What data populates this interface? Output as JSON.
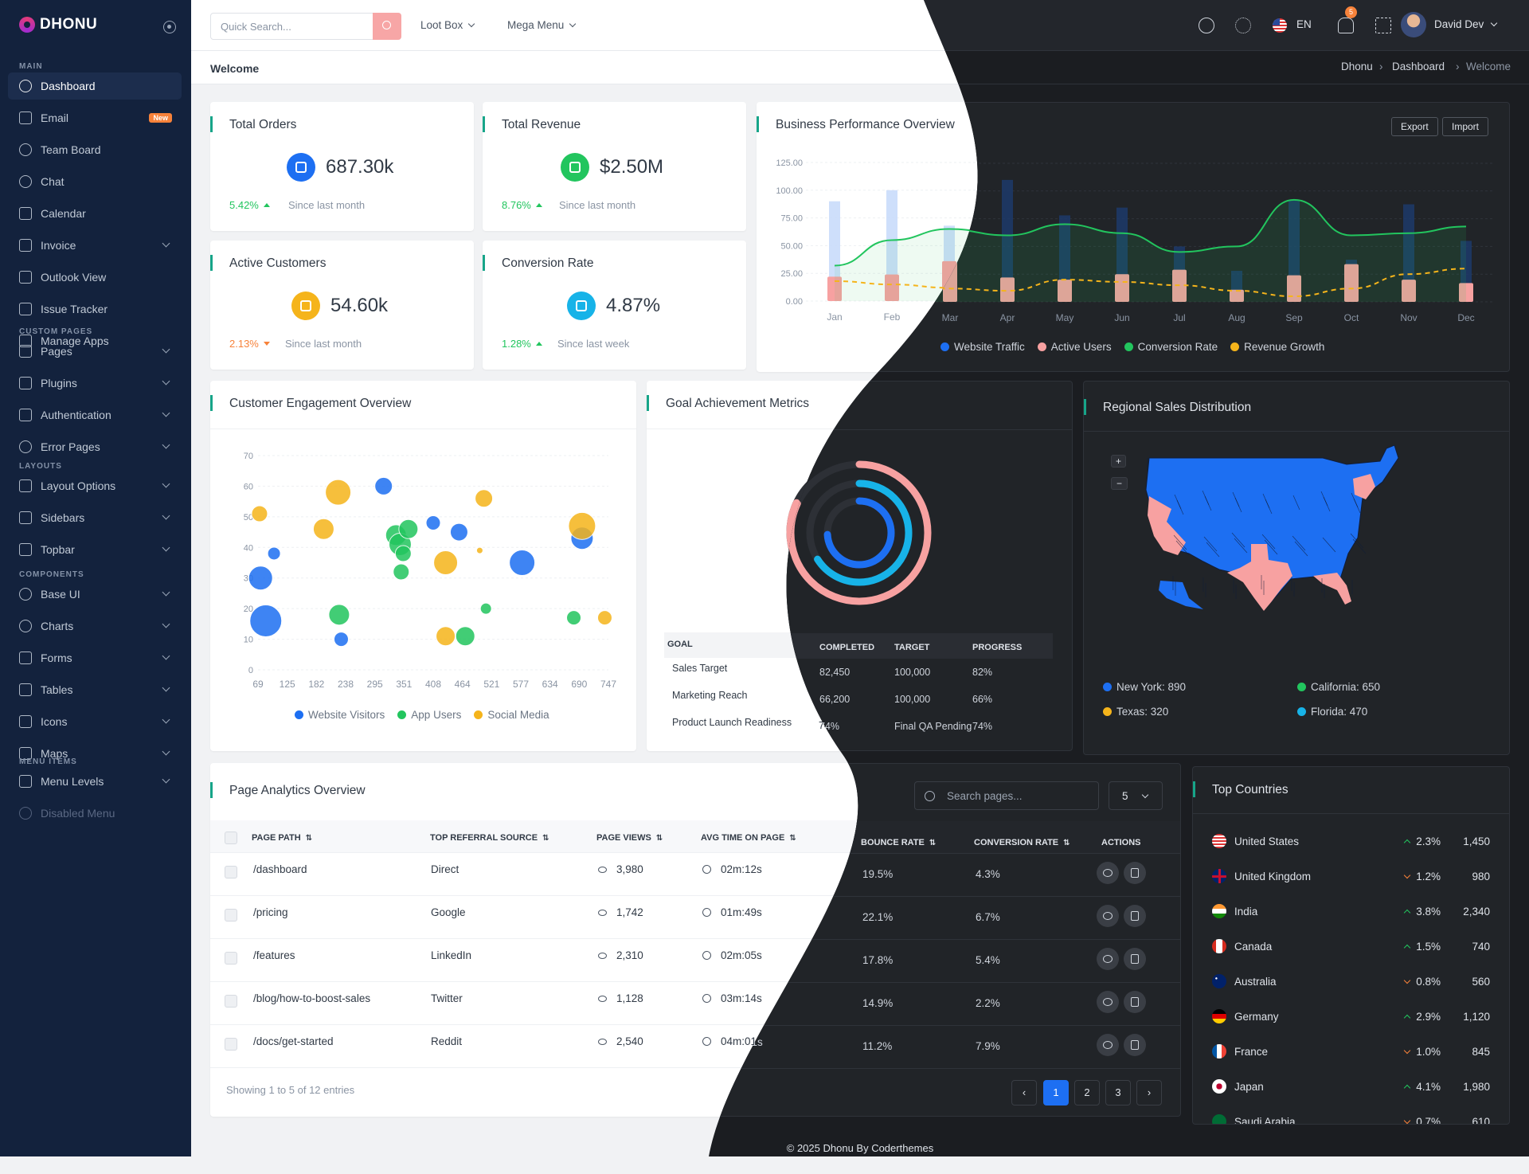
{
  "brand": "DHONU",
  "sidebar": {
    "sections": [
      {
        "title": "MAIN",
        "items": [
          {
            "label": "Dashboard",
            "icon": "dashboard-icon",
            "active": true
          },
          {
            "label": "Email",
            "icon": "mail-icon",
            "badge": "New"
          },
          {
            "label": "Team Board",
            "icon": "team-icon"
          },
          {
            "label": "Chat",
            "icon": "chat-icon"
          },
          {
            "label": "Calendar",
            "icon": "calendar-icon"
          },
          {
            "label": "Invoice",
            "icon": "invoice-icon",
            "chevron": true
          },
          {
            "label": "Outlook View",
            "icon": "outlook-icon"
          },
          {
            "label": "Issue Tracker",
            "icon": "bug-icon"
          },
          {
            "label": "Manage Apps",
            "icon": "apps-icon"
          }
        ]
      },
      {
        "title": "CUSTOM PAGES",
        "items": [
          {
            "label": "Pages",
            "icon": "pages-icon",
            "chevron": true
          },
          {
            "label": "Plugins",
            "icon": "plugins-icon",
            "chevron": true
          },
          {
            "label": "Authentication",
            "icon": "shield-icon",
            "chevron": true
          },
          {
            "label": "Error Pages",
            "icon": "alert-icon",
            "chevron": true
          }
        ]
      },
      {
        "title": "LAYOUTS",
        "items": [
          {
            "label": "Layout Options",
            "icon": "layout-icon",
            "chevron": true
          },
          {
            "label": "Sidebars",
            "icon": "sidebar-icon",
            "chevron": true
          },
          {
            "label": "Topbar",
            "icon": "topbar-icon",
            "chevron": true
          }
        ]
      },
      {
        "title": "COMPONENTS",
        "items": [
          {
            "label": "Base UI",
            "icon": "baseui-icon",
            "chevron": true
          },
          {
            "label": "Charts",
            "icon": "chart-icon",
            "chevron": true
          },
          {
            "label": "Forms",
            "icon": "form-icon",
            "chevron": true
          },
          {
            "label": "Tables",
            "icon": "table-icon",
            "chevron": true
          },
          {
            "label": "Icons",
            "icon": "icons-icon",
            "chevron": true
          },
          {
            "label": "Maps",
            "icon": "map-icon",
            "chevron": true
          }
        ]
      },
      {
        "title": "MENU ITEMS",
        "items": [
          {
            "label": "Menu Levels",
            "icon": "levels-icon",
            "chevron": true
          },
          {
            "label": "Disabled Menu",
            "icon": "disabled-icon",
            "disabled": true
          }
        ]
      }
    ]
  },
  "topbar": {
    "search_placeholder": "Quick Search...",
    "menu1": "Loot Box",
    "menu2": "Mega Menu",
    "lang": "EN",
    "notifications": "5",
    "user": "David Dev"
  },
  "page": {
    "title": "Welcome",
    "breadcrumb": [
      "Dhonu",
      "Dashboard",
      "Welcome"
    ]
  },
  "stats": [
    {
      "title": "Total Orders",
      "value": "687.30k",
      "trend": "5.42%",
      "dir": "up",
      "since": "Since last month",
      "color": "#1d6ff2"
    },
    {
      "title": "Total Revenue",
      "value": "$2.50M",
      "trend": "8.76%",
      "dir": "up",
      "since": "Since last month",
      "color": "#22c55e"
    },
    {
      "title": "Active Customers",
      "value": "54.60k",
      "trend": "2.13%",
      "dir": "down",
      "since": "Since last month",
      "color": "#f5b41b"
    },
    {
      "title": "Conversion Rate",
      "value": "4.87%",
      "trend": "1.28%",
      "dir": "up",
      "since": "Since last week",
      "color": "#17b3e8"
    }
  ],
  "business": {
    "title": "Business Performance Overview",
    "export": "Export",
    "import": "Import",
    "legend": [
      {
        "name": "Website Traffic",
        "color": "#1d6ff2"
      },
      {
        "name": "Active Users",
        "color": "#f7a1a1"
      },
      {
        "name": "Conversion Rate",
        "color": "#22c55e"
      },
      {
        "name": "Revenue Growth",
        "color": "#f5b41b"
      }
    ]
  },
  "engagement": {
    "title": "Customer Engagement Overview",
    "legend": [
      {
        "name": "Website Visitors",
        "color": "#1d6ff2"
      },
      {
        "name": "App Users",
        "color": "#22c55e"
      },
      {
        "name": "Social Media",
        "color": "#f5b41b"
      }
    ]
  },
  "goals": {
    "title": "Goal Achievement Metrics",
    "headers": [
      "GOAL",
      "COMPLETED",
      "TARGET",
      "PROGRESS"
    ],
    "rows": [
      [
        "Sales Target",
        "82,450",
        "100,000",
        "82%"
      ],
      [
        "Marketing Reach",
        "66,200",
        "100,000",
        "66%"
      ],
      [
        "Product Launch Readiness",
        "74%",
        "Final QA Pending",
        "74%"
      ]
    ]
  },
  "regional": {
    "title": "Regional Sales Distribution",
    "zoom_in": "+",
    "zoom_out": "−",
    "legend": [
      {
        "name": "New York: 890",
        "color": "#1d6ff2"
      },
      {
        "name": "California: 650",
        "color": "#22c55e"
      },
      {
        "name": "Texas: 320",
        "color": "#f5b41b"
      },
      {
        "name": "Florida: 470",
        "color": "#17b3e8"
      }
    ]
  },
  "analytics": {
    "title": "Page Analytics Overview",
    "search_placeholder": "Search pages...",
    "page_size": "5",
    "headers": [
      "PAGE PATH",
      "TOP REFERRAL SOURCE",
      "PAGE VIEWS",
      "AVG TIME ON PAGE",
      "BOUNCE RATE",
      "CONVERSION RATE",
      "ACTIONS"
    ],
    "rows": [
      [
        "/dashboard",
        "Direct",
        "3,980",
        "02m:12s",
        "19.5%",
        "4.3%"
      ],
      [
        "/pricing",
        "Google",
        "1,742",
        "01m:49s",
        "22.1%",
        "6.7%"
      ],
      [
        "/features",
        "LinkedIn",
        "2,310",
        "02m:05s",
        "17.8%",
        "5.4%"
      ],
      [
        "/blog/how-to-boost-sales",
        "Twitter",
        "1,128",
        "03m:14s",
        "14.9%",
        "2.2%"
      ],
      [
        "/docs/get-started",
        "Reddit",
        "2,540",
        "04m:01s",
        "11.2%",
        "7.9%"
      ]
    ],
    "showing": "Showing 1 to 5 of 12 entries",
    "pages": [
      "1",
      "2",
      "3"
    ],
    "prev": "‹",
    "next": "›"
  },
  "countries": {
    "title": "Top Countries",
    "rows": [
      {
        "name": "United States",
        "pct": "2.3%",
        "dir": "up",
        "val": "1,450"
      },
      {
        "name": "United Kingdom",
        "pct": "1.2%",
        "dir": "dn",
        "val": "980"
      },
      {
        "name": "India",
        "pct": "3.8%",
        "dir": "up",
        "val": "2,340"
      },
      {
        "name": "Canada",
        "pct": "1.5%",
        "dir": "up",
        "val": "740"
      },
      {
        "name": "Australia",
        "pct": "0.8%",
        "dir": "dn",
        "val": "560"
      },
      {
        "name": "Germany",
        "pct": "2.9%",
        "dir": "up",
        "val": "1,120"
      },
      {
        "name": "France",
        "pct": "1.0%",
        "dir": "dn",
        "val": "845"
      },
      {
        "name": "Japan",
        "pct": "4.1%",
        "dir": "up",
        "val": "1,980"
      },
      {
        "name": "Saudi Arabia",
        "pct": "0.7%",
        "dir": "dn",
        "val": "610"
      }
    ]
  },
  "footer": "© 2025 Dhonu By Coderthemes",
  "chart_data": [
    {
      "type": "bar",
      "title": "Business Performance Overview",
      "categories": [
        "Jan",
        "Feb",
        "Mar",
        "Apr",
        "May",
        "Jun",
        "Jul",
        "Aug",
        "Sep",
        "Oct",
        "Nov",
        "Dec"
      ],
      "ylim": [
        0,
        125
      ],
      "yticks": [
        "0.00",
        "25.00",
        "50.00",
        "75.00",
        "100.00",
        "125.00"
      ],
      "series": [
        {
          "name": "Website Traffic",
          "type": "bar",
          "values": [
            90,
            100,
            68,
            110,
            78,
            85,
            50,
            28,
            92,
            38,
            88,
            55
          ]
        },
        {
          "name": "Active Users",
          "type": "bar",
          "values": [
            22,
            24,
            36,
            22,
            20,
            25,
            29,
            11,
            24,
            34,
            20,
            17
          ]
        },
        {
          "name": "Conversion Rate",
          "type": "line",
          "values": [
            32,
            55,
            65,
            60,
            70,
            62,
            45,
            50,
            92,
            60,
            62,
            68
          ]
        },
        {
          "name": "Revenue Growth",
          "type": "line",
          "values": [
            18,
            15,
            12,
            10,
            20,
            18,
            15,
            10,
            5,
            12,
            25,
            30
          ]
        }
      ]
    },
    {
      "type": "scatter",
      "title": "Customer Engagement Overview",
      "xticks": [
        "69",
        "125",
        "182",
        "238",
        "295",
        "351",
        "408",
        "464",
        "521",
        "577",
        "634",
        "690",
        "747"
      ],
      "yticks": [
        "0",
        "10",
        "20",
        "30",
        "40",
        "50",
        "60",
        "70"
      ],
      "series": [
        {
          "name": "Website Visitors",
          "points": [
            [
              74,
              30,
              15
            ],
            [
              100,
              38,
              8
            ],
            [
              84,
              16,
              20
            ],
            [
              230,
              10,
              9
            ],
            [
              312,
              60,
              11
            ],
            [
              408,
              48,
              9
            ],
            [
              458,
              45,
              11
            ],
            [
              580,
              35,
              16
            ],
            [
              696,
              43,
              14
            ]
          ]
        },
        {
          "name": "App Users",
          "points": [
            [
              226,
              18,
              13
            ],
            [
              336,
              44,
              13
            ],
            [
              344,
              41,
              14
            ],
            [
              350,
              38,
              10
            ],
            [
              346,
              32,
              10
            ],
            [
              360,
              46,
              12
            ],
            [
              470,
              11,
              12
            ],
            [
              510,
              20,
              7
            ],
            [
              680,
              17,
              9
            ]
          ]
        },
        {
          "name": "Social Media",
          "points": [
            [
              72,
              51,
              10
            ],
            [
              224,
              58,
              16
            ],
            [
              196,
              46,
              13
            ],
            [
              432,
              35,
              15
            ],
            [
              432,
              11,
              12
            ],
            [
              498,
              39,
              4
            ],
            [
              506,
              56,
              11
            ],
            [
              696,
              47,
              17
            ],
            [
              740,
              17,
              9
            ]
          ]
        }
      ]
    },
    {
      "type": "radialBar",
      "title": "Goal Achievement Metrics",
      "categories": [
        "Sales Target",
        "Marketing Reach",
        "Product Launch Readiness"
      ],
      "values": [
        82,
        66,
        74
      ]
    }
  ]
}
